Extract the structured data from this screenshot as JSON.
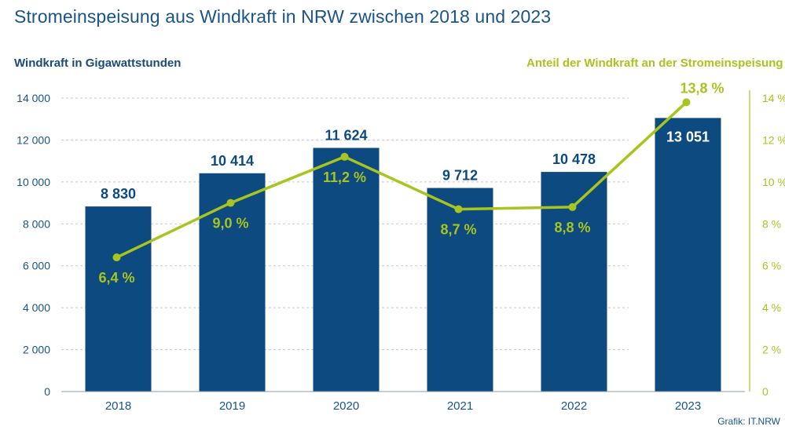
{
  "title": "Stromeinspeisung aus Windkraft in NRW zwischen 2018 und 2023",
  "credit": "Grafik: IT.NRW",
  "colors": {
    "bar": "#0d4a80",
    "line": "#a7c41f",
    "text": "#1a5488",
    "grid": "#c8c8c8"
  },
  "chart_data": {
    "type": "bar",
    "categories": [
      "2018",
      "2019",
      "2020",
      "2021",
      "2022",
      "2023"
    ],
    "series": [
      {
        "type": "bar",
        "values": [
          8830,
          10414,
          11624,
          9712,
          10478,
          13051
        ],
        "labels": [
          "8 830",
          "10 414",
          "11 624",
          "9 712",
          "10 478",
          "13 051"
        ],
        "axis": "left"
      },
      {
        "type": "line",
        "values": [
          6.4,
          9.0,
          11.2,
          8.7,
          8.8,
          13.8
        ],
        "labels": [
          "6,4 %",
          "9,0 %",
          "11,2 %",
          "8,7 %",
          "8,8 %",
          "13,8 %"
        ],
        "axis": "right"
      }
    ],
    "ylabel": "Windkraft in Gigawattstunden",
    "ylabel_right": "Anteil der Windkraft an der Stromeinspeisung",
    "ylim": [
      0,
      14000
    ],
    "ylim_right": [
      0,
      14
    ],
    "yticks": [
      "0",
      "2 000",
      "4 000",
      "6 000",
      "8 000",
      "10 000",
      "12 000",
      "14 000"
    ],
    "yticks_right": [
      "0",
      "2 %",
      "4 %",
      "6 %",
      "8 %",
      "10 %",
      "12 %",
      "14 %"
    ],
    "grid": true,
    "legend": "none"
  }
}
